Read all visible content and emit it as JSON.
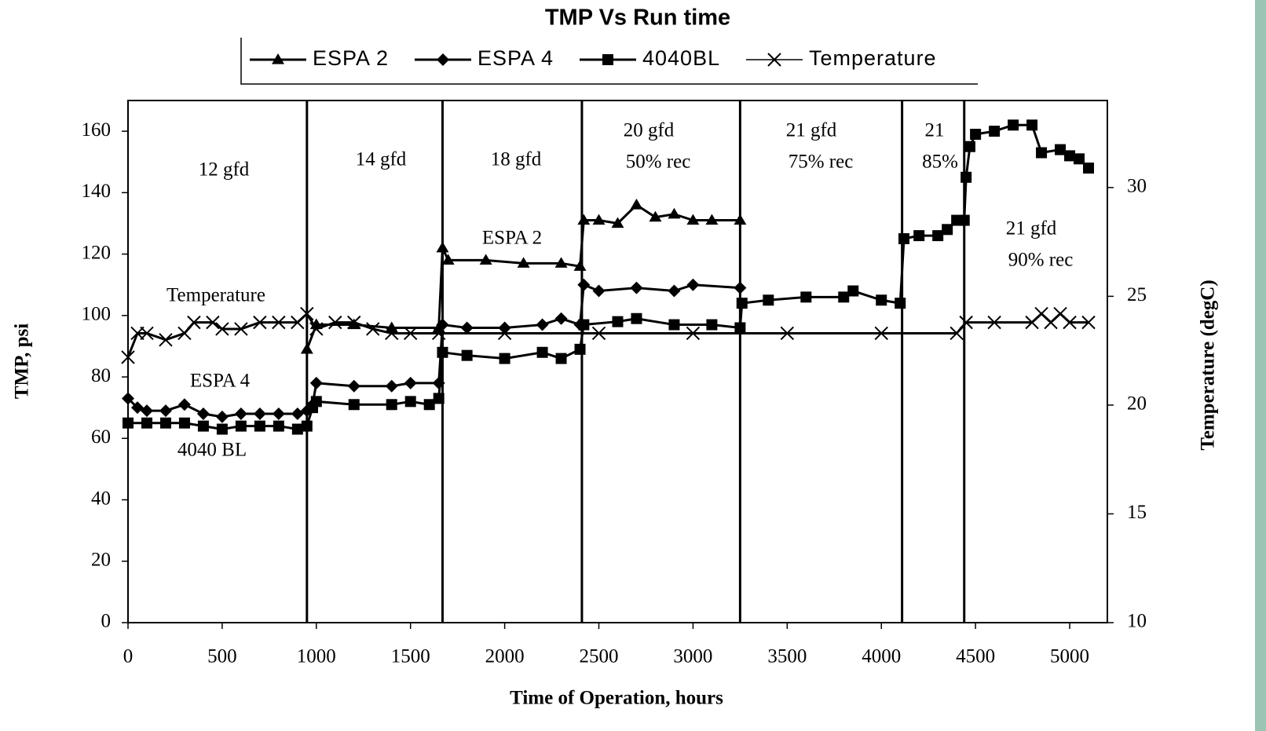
{
  "chart_data": {
    "type": "line",
    "title": "TMP Vs Run time",
    "x_label": "Time of Operation, hours",
    "y_label": "TMP, psi",
    "y2_label": "Temperature (degC)",
    "xlim": [
      0,
      5200
    ],
    "ylim": [
      0,
      170
    ],
    "y2lim": [
      10,
      34
    ],
    "xticks": [
      0,
      500,
      1000,
      1500,
      2000,
      2500,
      3000,
      3500,
      4000,
      4500,
      5000
    ],
    "yticks": [
      0,
      20,
      40,
      60,
      80,
      100,
      120,
      140,
      160
    ],
    "y2ticks": [
      10,
      15,
      20,
      25,
      30
    ],
    "vlines": [
      950,
      1670,
      2410,
      3250,
      4110,
      4440
    ],
    "annotations": [
      "12 gfd",
      "14 gfd",
      "18 gfd",
      "20 gfd",
      "50% rec",
      "21 gfd",
      "75% rec",
      "21",
      "85%",
      "21 gfd",
      "90% rec",
      "ESPA 2",
      "Temperature",
      "ESPA 4",
      "4040 BL"
    ],
    "series": [
      {
        "name": "ESPA 2",
        "color": "#000000",
        "marker": "triangle",
        "x": [
          950,
          1000,
          1200,
          1400,
          1650,
          1670,
          1700,
          1900,
          2100,
          2300,
          2400,
          2420,
          2500,
          2600,
          2700,
          2800,
          2900,
          3000,
          3100,
          3250
        ],
        "values": [
          89,
          97,
          97,
          96,
          96,
          122,
          118,
          118,
          117,
          117,
          116,
          131,
          131,
          130,
          136,
          132,
          133,
          131,
          131,
          131
        ]
      },
      {
        "name": "ESPA 4",
        "color": "#000000",
        "marker": "diamond",
        "x": [
          0,
          50,
          100,
          200,
          300,
          400,
          500,
          600,
          700,
          800,
          900,
          950,
          980,
          1000,
          1200,
          1400,
          1500,
          1650,
          1670,
          1800,
          2000,
          2200,
          2300,
          2400,
          2420,
          2500,
          2700,
          2900,
          3000,
          3250
        ],
        "values": [
          73,
          70,
          69,
          69,
          71,
          68,
          67,
          68,
          68,
          68,
          68,
          69,
          71,
          78,
          77,
          77,
          78,
          78,
          97,
          96,
          96,
          97,
          99,
          97,
          110,
          108,
          109,
          108,
          110,
          109
        ]
      },
      {
        "name": "4040BL",
        "color": "#000000",
        "marker": "square",
        "x": [
          0,
          100,
          200,
          300,
          400,
          500,
          600,
          700,
          800,
          900,
          950,
          980,
          1000,
          1200,
          1400,
          1500,
          1600,
          1650,
          1670,
          1800,
          2000,
          2200,
          2300,
          2400,
          2420,
          2600,
          2700,
          2900,
          3100,
          3250,
          3260,
          3400,
          3600,
          3800,
          3850,
          4000,
          4100,
          4120,
          4200,
          4300,
          4350,
          4400,
          4440,
          4450,
          4470,
          4500,
          4600,
          4700,
          4800,
          4850,
          4950,
          5000,
          5050,
          5100
        ],
        "values": [
          65,
          65,
          65,
          65,
          64,
          63,
          64,
          64,
          64,
          63,
          64,
          70,
          72,
          71,
          71,
          72,
          71,
          73,
          88,
          87,
          86,
          88,
          86,
          89,
          97,
          98,
          99,
          97,
          97,
          96,
          104,
          105,
          106,
          106,
          108,
          105,
          104,
          125,
          126,
          126,
          128,
          131,
          131,
          145,
          155,
          159,
          160,
          162,
          162,
          153,
          154,
          152,
          151,
          148
        ]
      },
      {
        "name": "Temperature",
        "color": "#000000",
        "marker": "cross",
        "axis": "y2",
        "x": [
          0,
          50,
          100,
          200,
          300,
          350,
          450,
          500,
          600,
          700,
          800,
          900,
          950,
          1000,
          1100,
          1200,
          1300,
          1400,
          1500,
          1650,
          2000,
          2500,
          3000,
          3500,
          4000,
          4400,
          4450,
          4600,
          4800,
          4850,
          4900,
          4950,
          5000,
          5100
        ],
        "values": [
          22.2,
          23.3,
          23.3,
          23,
          23.3,
          23.8,
          23.8,
          23.5,
          23.5,
          23.8,
          23.8,
          23.8,
          24.2,
          23.5,
          23.8,
          23.8,
          23.5,
          23.3,
          23.3,
          23.3,
          23.3,
          23.3,
          23.3,
          23.3,
          23.3,
          23.3,
          23.8,
          23.8,
          23.8,
          24.2,
          23.8,
          24.2,
          23.8,
          23.8
        ]
      }
    ]
  }
}
